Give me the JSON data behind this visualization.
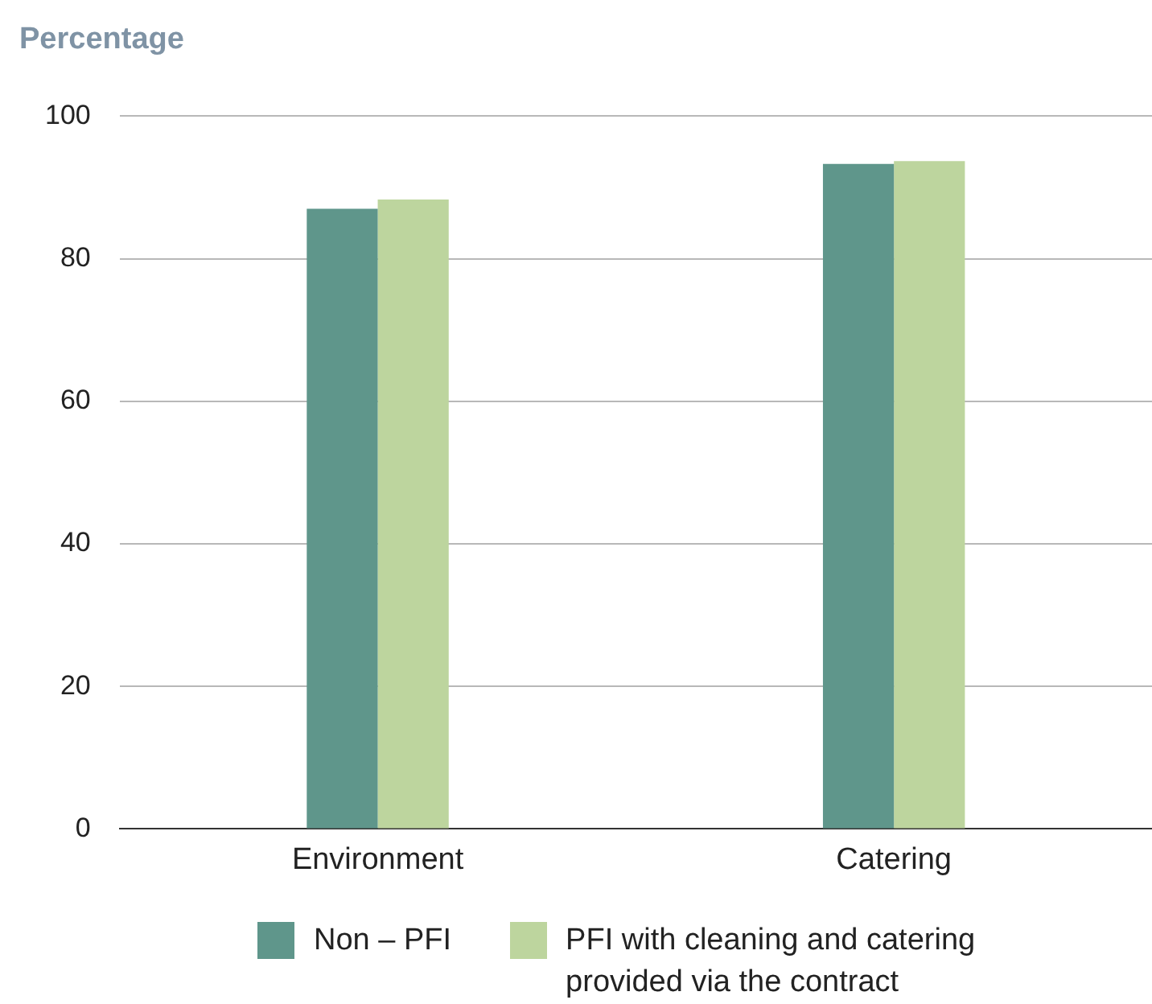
{
  "chart_data": {
    "type": "bar",
    "ylabel": "Percentage",
    "categories": [
      "Environment",
      "Catering"
    ],
    "series": [
      {
        "name": "Non – PFI",
        "color": "#5f968b",
        "values": [
          87.0,
          93.3
        ]
      },
      {
        "name": "PFI with cleaning and catering provided via the contract",
        "color": "#bdd59e",
        "values": [
          88.3,
          93.7
        ]
      }
    ],
    "ylim": [
      0,
      100
    ],
    "yticks": [
      0,
      20,
      40,
      60,
      80,
      100
    ],
    "grid": "y",
    "legend": "bottom"
  }
}
